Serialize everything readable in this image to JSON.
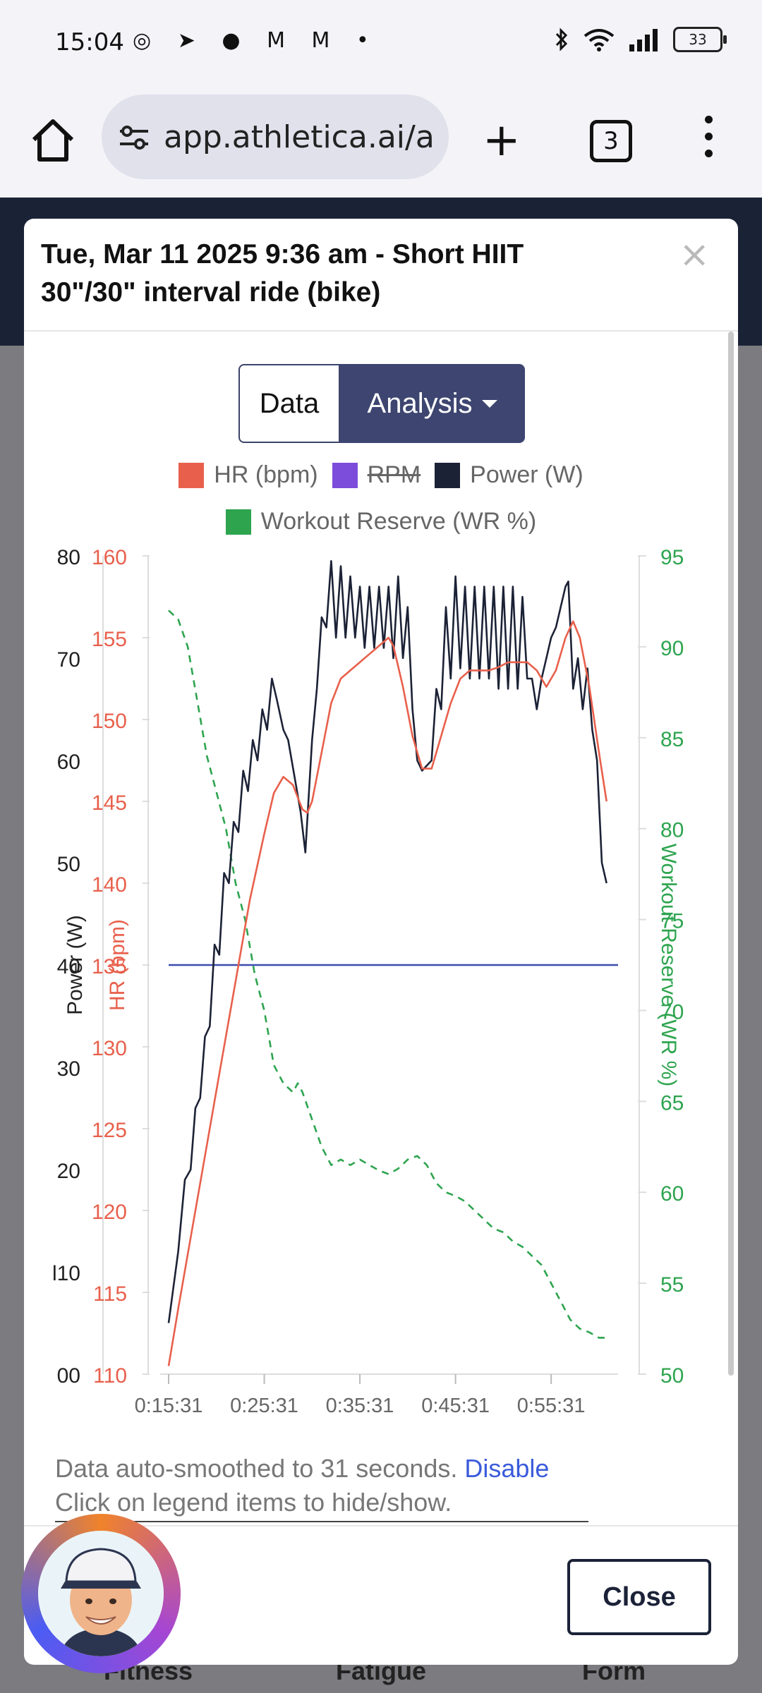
{
  "status": {
    "time": "15:04",
    "battery": "33",
    "notif_icons": "◎ ➤ ● M M •"
  },
  "browser": {
    "url": "app.athletica.ai/a",
    "tabs_count": "3"
  },
  "modal": {
    "title_line1": "Tue, Mar 11 2025 9:36 am - Short HIIT",
    "title_line2": "30\"/30\" interval ride (bike)",
    "btn_data": "Data",
    "btn_analysis": "Analysis",
    "note_text": "Data auto-smoothed to 31 seconds.",
    "note_link": "Disable",
    "note_line2": "Click on legend items to hide/show.",
    "close_label": "Close"
  },
  "background_tabs": [
    "Fitness",
    "Fatigue",
    "Form"
  ],
  "chart_data": {
    "type": "line",
    "legend": [
      {
        "name": "HR (bpm)",
        "color": "#e8604c",
        "hidden": false
      },
      {
        "name": "RPM",
        "color": "#7c4ddb",
        "hidden": true
      },
      {
        "name": "Power (W)",
        "color": "#1c2236",
        "hidden": false
      },
      {
        "name": "Workout Reserve (WR %)",
        "color": "#2ea44f",
        "hidden": false
      }
    ],
    "x_ticks": [
      "0:15:31",
      "0:25:31",
      "0:35:31",
      "0:45:31",
      "0:55:31"
    ],
    "x_range_min": [
      15.5,
      62.5
    ],
    "axes": {
      "power": {
        "label": "Power (W)",
        "range": [
          0,
          80
        ],
        "ticks": [
          "00",
          "l10",
          "20",
          "30",
          "40",
          "50",
          "60",
          "70",
          "80"
        ]
      },
      "hr": {
        "label": "HR (bpm)",
        "range": [
          110,
          160
        ],
        "ticks": [
          "110",
          "115",
          "120",
          "125",
          "130",
          "135",
          "140",
          "145",
          "150",
          "155",
          "160"
        ]
      },
      "wr": {
        "label": "Workout Reserve (WR %)",
        "range": [
          50,
          95
        ],
        "ticks": [
          "50",
          "55",
          "60",
          "65",
          "70",
          "75",
          "80",
          "85",
          "90",
          "95"
        ]
      }
    },
    "reference_line": {
      "axis": "power",
      "value": 40,
      "color": "#3b4bb0"
    },
    "series": [
      {
        "name": "Power (W)",
        "axis": "power",
        "color": "#1c2236",
        "style": "solid",
        "points": [
          [
            15.5,
            5
          ],
          [
            16.5,
            12
          ],
          [
            17.2,
            19
          ],
          [
            17.8,
            20
          ],
          [
            18.3,
            26
          ],
          [
            18.8,
            27
          ],
          [
            19.3,
            33
          ],
          [
            19.8,
            34
          ],
          [
            20.3,
            42
          ],
          [
            20.8,
            41
          ],
          [
            21.3,
            49
          ],
          [
            21.8,
            48
          ],
          [
            22.3,
            54
          ],
          [
            22.8,
            53
          ],
          [
            23.3,
            59
          ],
          [
            23.8,
            57
          ],
          [
            24.3,
            62
          ],
          [
            24.8,
            60
          ],
          [
            25.3,
            65
          ],
          [
            25.8,
            63
          ],
          [
            26.3,
            68
          ],
          [
            26.8,
            66
          ],
          [
            27.5,
            63
          ],
          [
            28,
            62
          ],
          [
            29.3,
            55
          ],
          [
            29.8,
            51
          ],
          [
            30.5,
            62
          ],
          [
            31,
            67
          ],
          [
            31.5,
            74
          ],
          [
            32,
            73
          ],
          [
            32.5,
            79.5
          ],
          [
            33,
            72
          ],
          [
            33.5,
            79
          ],
          [
            34,
            72
          ],
          [
            34.5,
            78
          ],
          [
            35,
            72
          ],
          [
            35.5,
            77
          ],
          [
            36,
            71
          ],
          [
            36.5,
            77
          ],
          [
            37,
            71
          ],
          [
            37.5,
            77
          ],
          [
            38,
            71
          ],
          [
            38.5,
            77
          ],
          [
            39,
            70
          ],
          [
            39.5,
            78
          ],
          [
            40,
            70
          ],
          [
            40.5,
            75
          ],
          [
            41,
            65
          ],
          [
            41.5,
            60
          ],
          [
            42,
            59
          ],
          [
            43,
            60
          ],
          [
            43.5,
            67
          ],
          [
            44,
            65
          ],
          [
            44.5,
            75
          ],
          [
            45,
            68
          ],
          [
            45.5,
            78
          ],
          [
            46,
            69
          ],
          [
            46.5,
            77
          ],
          [
            47,
            68
          ],
          [
            47.5,
            77
          ],
          [
            48,
            68
          ],
          [
            48.5,
            77
          ],
          [
            49,
            68
          ],
          [
            49.5,
            77
          ],
          [
            50,
            67
          ],
          [
            50.5,
            77
          ],
          [
            51,
            67
          ],
          [
            51.5,
            77
          ],
          [
            52,
            67
          ],
          [
            52.5,
            76
          ],
          [
            53,
            68
          ],
          [
            53.5,
            68
          ],
          [
            54,
            65
          ],
          [
            54.5,
            68
          ],
          [
            55,
            70
          ],
          [
            55.5,
            72
          ],
          [
            56,
            73
          ],
          [
            56.5,
            75
          ],
          [
            57,
            77
          ],
          [
            57.3,
            77.5
          ],
          [
            57.8,
            67
          ],
          [
            58.3,
            70
          ],
          [
            58.8,
            65
          ],
          [
            59.3,
            69
          ],
          [
            59.8,
            63
          ],
          [
            60.3,
            60
          ],
          [
            60.8,
            50
          ],
          [
            61.3,
            48
          ]
        ]
      },
      {
        "name": "HR (bpm)",
        "axis": "hr",
        "color": "#e8604c",
        "style": "solid",
        "points": [
          [
            15.5,
            110.5
          ],
          [
            16.5,
            114
          ],
          [
            18,
            119
          ],
          [
            19.5,
            124
          ],
          [
            21,
            129
          ],
          [
            22.5,
            134
          ],
          [
            24,
            139
          ],
          [
            25.5,
            143
          ],
          [
            26.5,
            145.5
          ],
          [
            27.5,
            146.5
          ],
          [
            28.5,
            146
          ],
          [
            29.5,
            144.5
          ],
          [
            30,
            144.3
          ],
          [
            30.5,
            145
          ],
          [
            31.5,
            148
          ],
          [
            32.5,
            151
          ],
          [
            33.5,
            152.5
          ],
          [
            34.5,
            153
          ],
          [
            35.5,
            153.5
          ],
          [
            36.5,
            154
          ],
          [
            37.5,
            154.5
          ],
          [
            38.5,
            155
          ],
          [
            39,
            154.5
          ],
          [
            40,
            152
          ],
          [
            41,
            149
          ],
          [
            42,
            147
          ],
          [
            43,
            147
          ],
          [
            44,
            149
          ],
          [
            45,
            151
          ],
          [
            46,
            152.5
          ],
          [
            47,
            153
          ],
          [
            48,
            153
          ],
          [
            49,
            153
          ],
          [
            50,
            153.2
          ],
          [
            51,
            153.5
          ],
          [
            52,
            153.5
          ],
          [
            53,
            153.5
          ],
          [
            54,
            153
          ],
          [
            55,
            152
          ],
          [
            56,
            153
          ],
          [
            57,
            155
          ],
          [
            57.8,
            156
          ],
          [
            58.5,
            155
          ],
          [
            59.5,
            152
          ],
          [
            60.5,
            148
          ],
          [
            61.3,
            145
          ]
        ]
      },
      {
        "name": "Workout Reserve (WR %)",
        "axis": "wr",
        "color": "#2ea44f",
        "style": "dashed",
        "points": [
          [
            15.5,
            92
          ],
          [
            16.5,
            91.5
          ],
          [
            17.5,
            90
          ],
          [
            18.5,
            87
          ],
          [
            19.5,
            84
          ],
          [
            20.5,
            82
          ],
          [
            21.5,
            80
          ],
          [
            22.5,
            77
          ],
          [
            23.5,
            75
          ],
          [
            24.5,
            72
          ],
          [
            25.5,
            70
          ],
          [
            26.5,
            67
          ],
          [
            27.5,
            66
          ],
          [
            28.5,
            65.5
          ],
          [
            29,
            66
          ],
          [
            29.5,
            65.5
          ],
          [
            30.5,
            64
          ],
          [
            31.5,
            62.5
          ],
          [
            32.5,
            61.5
          ],
          [
            33.5,
            61.8
          ],
          [
            34.5,
            61.5
          ],
          [
            35.5,
            61.8
          ],
          [
            36.5,
            61.5
          ],
          [
            37.5,
            61.2
          ],
          [
            38.5,
            61
          ],
          [
            39.5,
            61.3
          ],
          [
            40.5,
            61.8
          ],
          [
            41.5,
            62
          ],
          [
            42.5,
            61.5
          ],
          [
            43.5,
            60.5
          ],
          [
            44.5,
            60
          ],
          [
            45.5,
            59.8
          ],
          [
            46.5,
            59.5
          ],
          [
            47.5,
            59
          ],
          [
            48.5,
            58.5
          ],
          [
            49.5,
            58
          ],
          [
            50.5,
            57.8
          ],
          [
            51.5,
            57.3
          ],
          [
            52.5,
            57
          ],
          [
            53.5,
            56.5
          ],
          [
            54.5,
            56
          ],
          [
            55.5,
            55
          ],
          [
            56.5,
            54
          ],
          [
            57.5,
            53
          ],
          [
            58.5,
            52.5
          ],
          [
            59.5,
            52.3
          ],
          [
            60.5,
            52
          ],
          [
            61.3,
            52
          ]
        ]
      }
    ]
  }
}
